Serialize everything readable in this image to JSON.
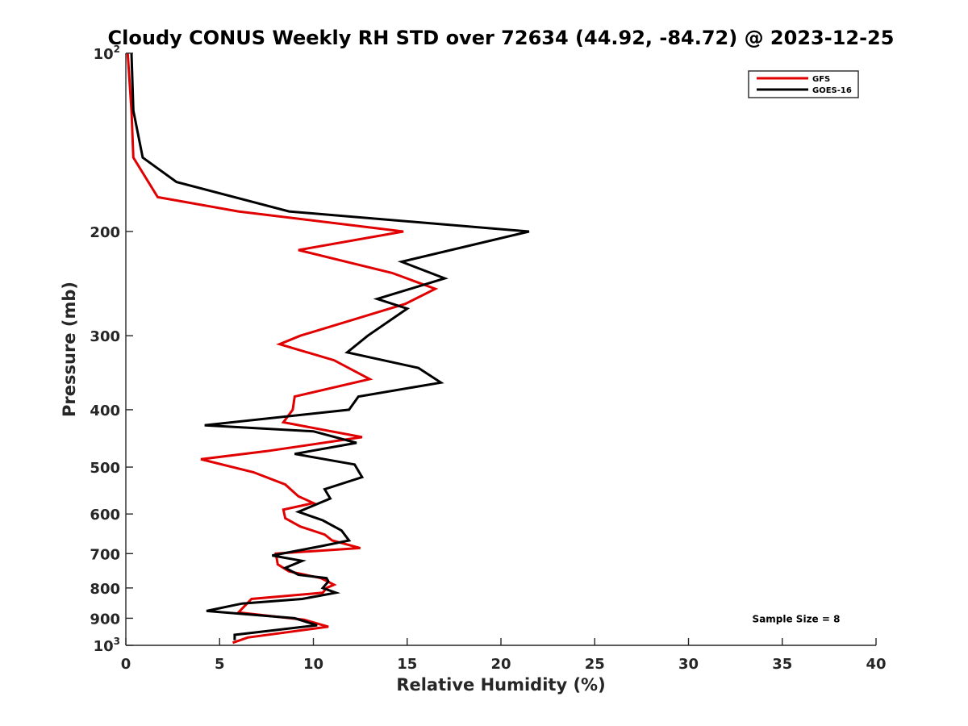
{
  "chart_data": {
    "type": "line",
    "title": "Cloudy CONUS Weekly RH STD over 72634 (44.92, -84.72) @ 2023-12-25",
    "xlabel": "Relative Humidity (%)",
    "ylabel": "Pressure (mb)",
    "xlim": [
      0,
      40
    ],
    "ylim": [
      100,
      1000
    ],
    "y_scale": "log",
    "y_reversed": true,
    "grid": false,
    "legend_position": "top-right",
    "x_ticks": [
      0,
      5,
      10,
      15,
      20,
      25,
      30,
      35,
      40
    ],
    "y_ticks": [
      {
        "value": 100,
        "base": "10",
        "exp": "2"
      },
      {
        "value": 200,
        "label": "200"
      },
      {
        "value": 300,
        "label": "300"
      },
      {
        "value": 400,
        "label": "400"
      },
      {
        "value": 500,
        "label": "500"
      },
      {
        "value": 600,
        "label": "600"
      },
      {
        "value": 700,
        "label": "700"
      },
      {
        "value": 800,
        "label": "800"
      },
      {
        "value": 900,
        "label": "900"
      },
      {
        "value": 1000,
        "base": "10",
        "exp": "3"
      }
    ],
    "series": [
      {
        "name": "GFS",
        "color": "#e00000",
        "points": [
          [
            0.1,
            100
          ],
          [
            0.3,
            125
          ],
          [
            0.4,
            150
          ],
          [
            1.7,
            175
          ],
          [
            6.0,
            185
          ],
          [
            14.8,
            200
          ],
          [
            9.2,
            215
          ],
          [
            14.2,
            235
          ],
          [
            16.5,
            250
          ],
          [
            14.9,
            265
          ],
          [
            9.3,
            300
          ],
          [
            8.2,
            310
          ],
          [
            11.1,
            330
          ],
          [
            13.0,
            355
          ],
          [
            9.0,
            380
          ],
          [
            8.9,
            400
          ],
          [
            8.4,
            420
          ],
          [
            12.6,
            445
          ],
          [
            7.5,
            470
          ],
          [
            4.0,
            485
          ],
          [
            6.8,
            510
          ],
          [
            8.5,
            535
          ],
          [
            9.2,
            560
          ],
          [
            10.0,
            575
          ],
          [
            8.4,
            590
          ],
          [
            8.5,
            610
          ],
          [
            9.3,
            630
          ],
          [
            10.6,
            650
          ],
          [
            11.0,
            665
          ],
          [
            12.5,
            685
          ],
          [
            8.0,
            700
          ],
          [
            8.1,
            730
          ],
          [
            8.7,
            750
          ],
          [
            10.4,
            770
          ],
          [
            11.1,
            790
          ],
          [
            10.7,
            800
          ],
          [
            10.5,
            815
          ],
          [
            6.7,
            835
          ],
          [
            6.0,
            880
          ],
          [
            9.5,
            905
          ],
          [
            10.8,
            930
          ],
          [
            6.5,
            970
          ],
          [
            5.7,
            990
          ]
        ]
      },
      {
        "name": "GOES-16",
        "color": "#000000",
        "points": [
          [
            0.3,
            100
          ],
          [
            0.4,
            125
          ],
          [
            0.9,
            150
          ],
          [
            2.7,
            165
          ],
          [
            8.7,
            185
          ],
          [
            21.5,
            200
          ],
          [
            14.7,
            225
          ],
          [
            17.0,
            240
          ],
          [
            13.4,
            260
          ],
          [
            15.0,
            270
          ],
          [
            12.9,
            300
          ],
          [
            11.8,
            320
          ],
          [
            15.6,
            340
          ],
          [
            16.8,
            360
          ],
          [
            12.4,
            380
          ],
          [
            11.9,
            400
          ],
          [
            4.2,
            425
          ],
          [
            10.0,
            435
          ],
          [
            12.3,
            455
          ],
          [
            9.0,
            475
          ],
          [
            12.2,
            495
          ],
          [
            12.6,
            520
          ],
          [
            10.6,
            545
          ],
          [
            10.9,
            565
          ],
          [
            9.2,
            595
          ],
          [
            10.5,
            615
          ],
          [
            11.5,
            640
          ],
          [
            11.9,
            665
          ],
          [
            10.4,
            680
          ],
          [
            7.8,
            705
          ],
          [
            9.4,
            720
          ],
          [
            8.5,
            740
          ],
          [
            9.2,
            760
          ],
          [
            10.7,
            770
          ],
          [
            10.8,
            780
          ],
          [
            10.5,
            800
          ],
          [
            11.2,
            815
          ],
          [
            9.4,
            835
          ],
          [
            6.2,
            850
          ],
          [
            4.3,
            875
          ],
          [
            9.0,
            900
          ],
          [
            10.2,
            925
          ],
          [
            5.8,
            960
          ],
          [
            5.8,
            980
          ]
        ]
      }
    ],
    "annotations": [
      {
        "text": "Sample Size = 8",
        "x": 33.4,
        "y": 900
      }
    ]
  }
}
